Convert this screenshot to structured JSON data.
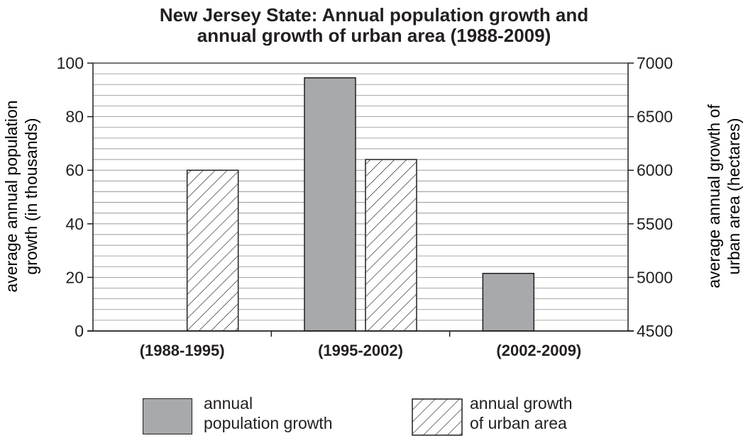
{
  "chart_data": {
    "type": "bar",
    "title_line1": "New Jersey State: Annual population growth and",
    "title_line2": "annual growth of urban area (1988-2009)",
    "categories": [
      "(1988-1995)",
      "(1995-2002)",
      "(2002-2009)"
    ],
    "series": [
      {
        "name_line1": "annual",
        "name_line2": "population growth",
        "axis": "left",
        "fill": "#a7a9ac",
        "values": [
          0,
          94.5,
          21.5
        ]
      },
      {
        "name_line1": "annual growth",
        "name_line2": "of urban area",
        "axis": "right",
        "fill": "hatched",
        "values": [
          6000,
          6100,
          4500
        ]
      }
    ],
    "y_left": {
      "label_line1": "average annual population",
      "label_line2": "growth (in thousands)",
      "min": 0,
      "max": 100,
      "ticks": [
        0,
        20,
        40,
        60,
        80,
        100
      ],
      "minor_step": 4
    },
    "y_right": {
      "label_line1": "average annual growth of",
      "label_line2": "urban area (hectares)",
      "min": 4500,
      "max": 7000,
      "ticks": [
        4500,
        5000,
        5500,
        6000,
        6500,
        7000
      ]
    },
    "grid": true,
    "legend_position": "bottom",
    "colors": {
      "ink": "#231f20",
      "bar_gray": "#a7a9ac",
      "grid": "#8a8c8e"
    }
  }
}
